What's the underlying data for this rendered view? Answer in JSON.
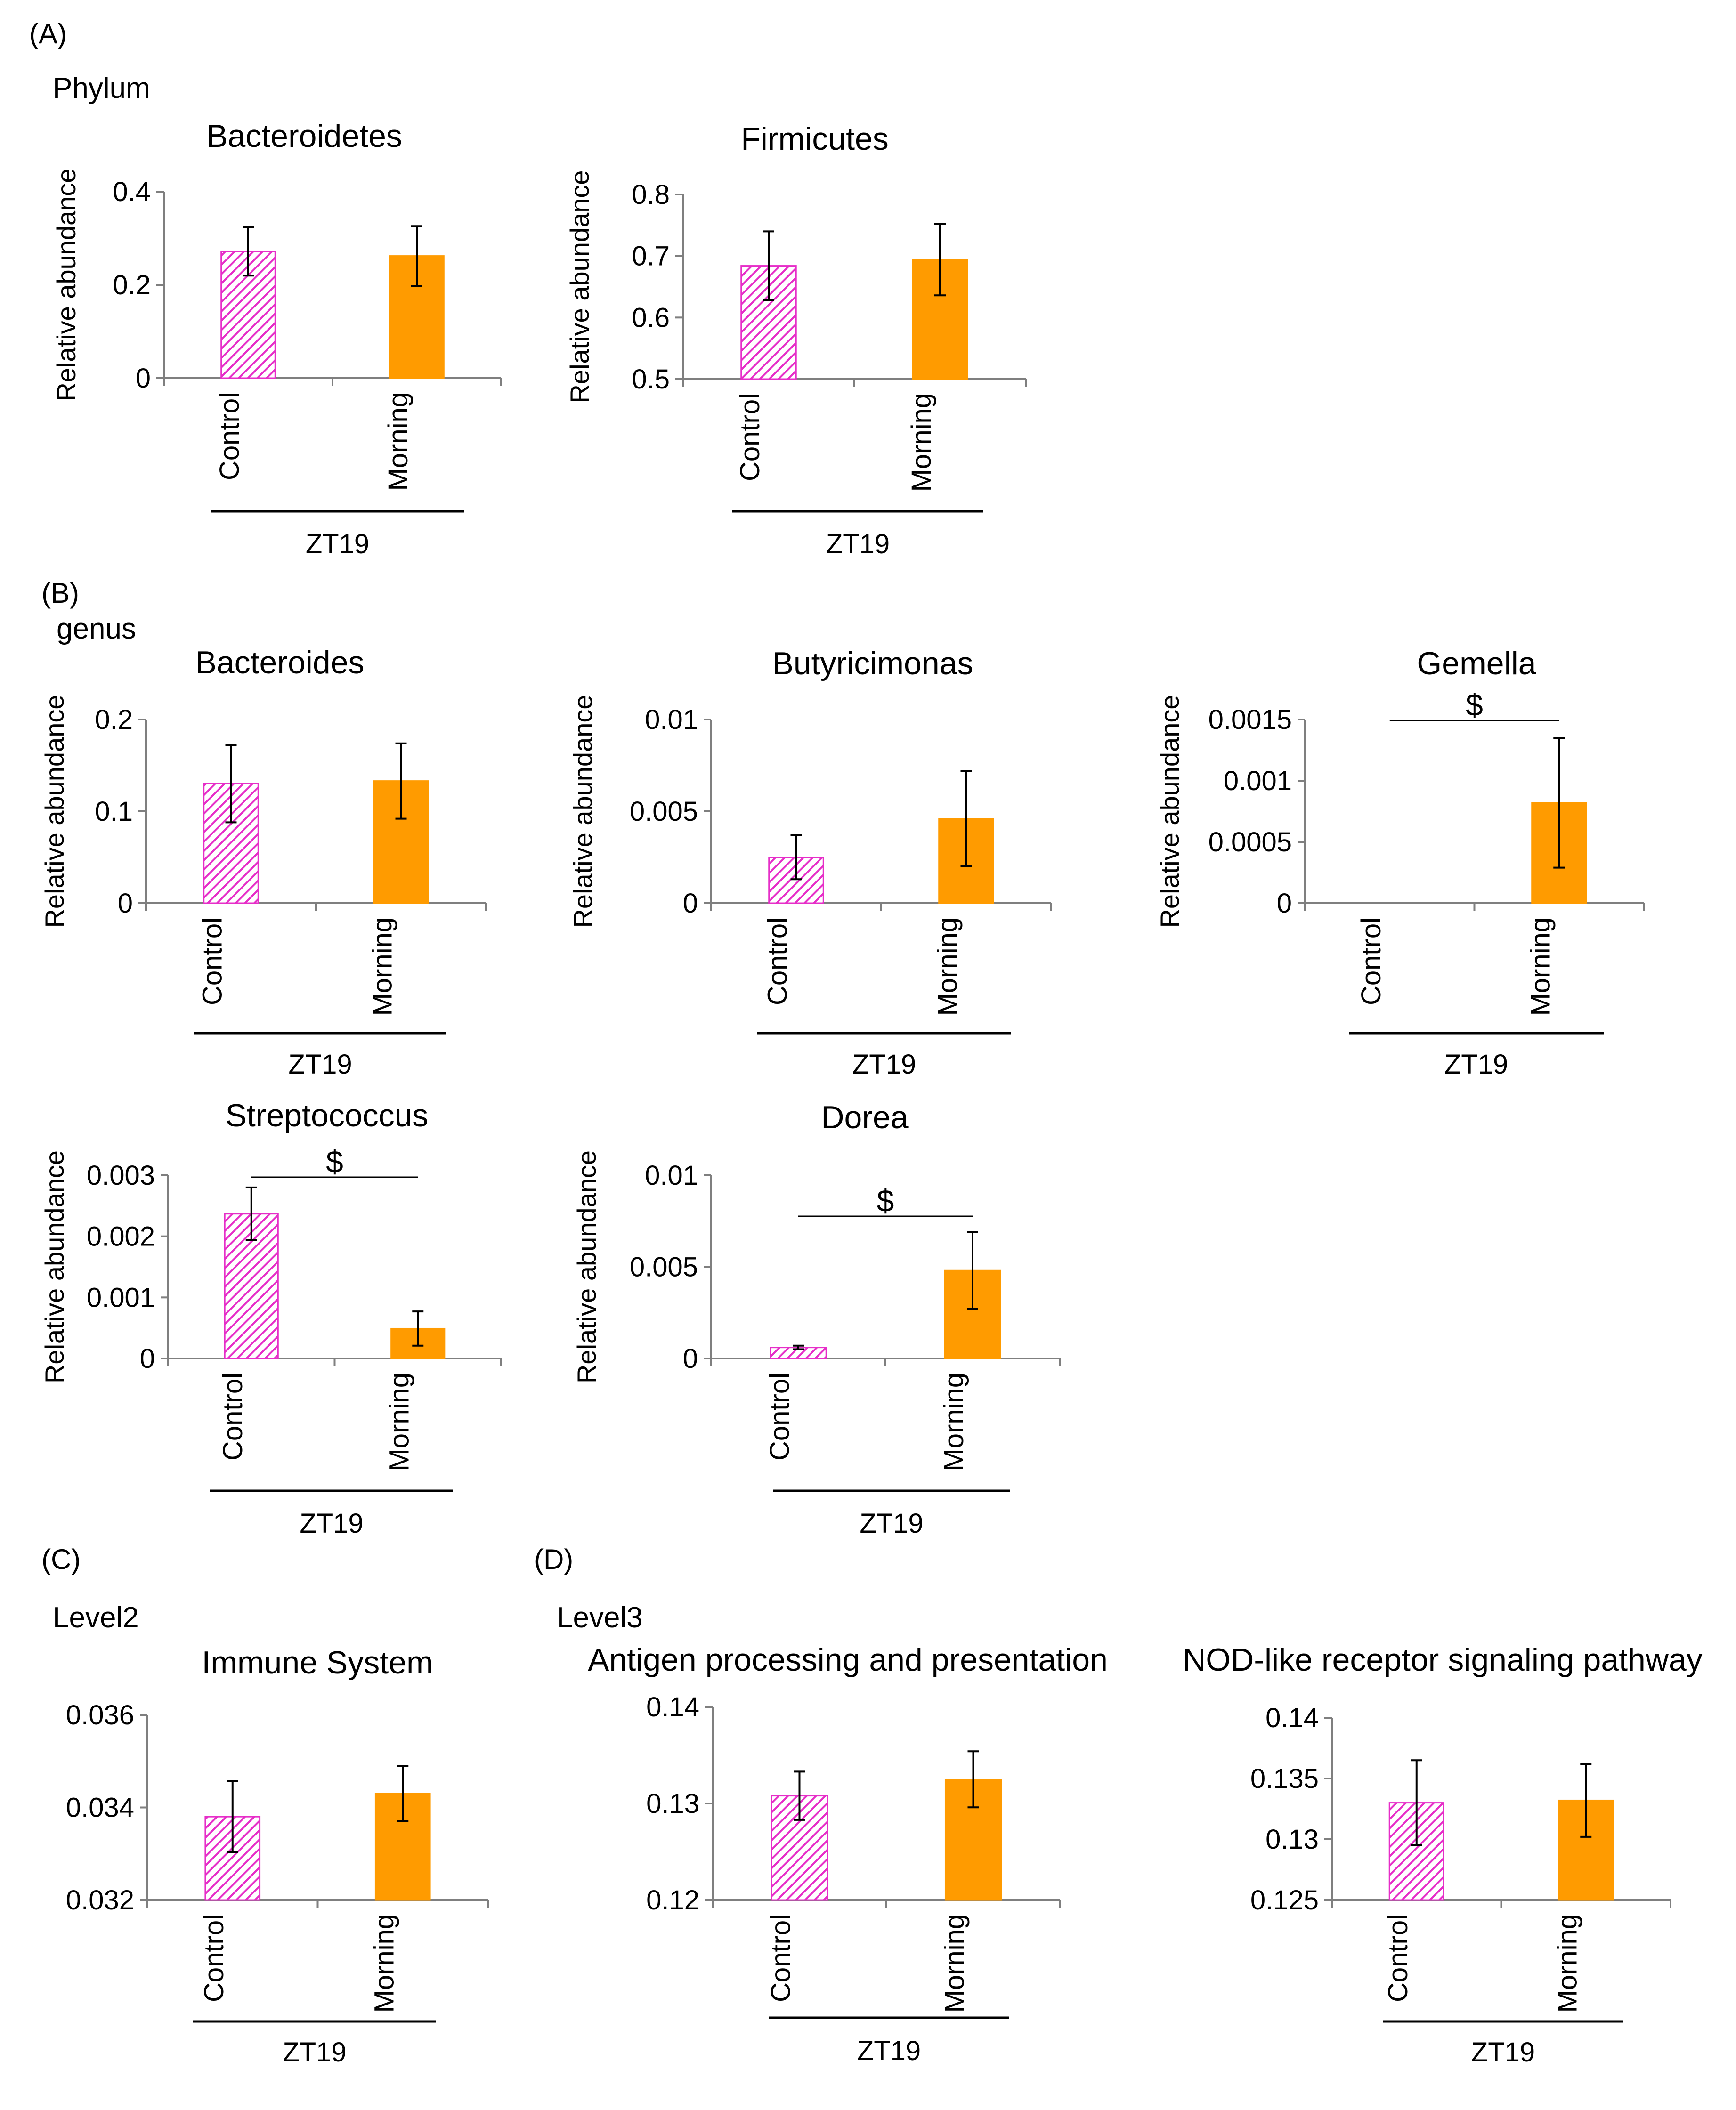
{
  "panels": {
    "A": "(A)",
    "B": "(B)",
    "C": "(C)",
    "D": "(D)"
  },
  "sections": {
    "phylum": "Phylum",
    "genus": "genus",
    "level2": "Level2",
    "level3": "Level3"
  },
  "colors": {
    "control": "#e62ec8",
    "morning": "#ff9b00",
    "axis": "#7f7f7f"
  },
  "chart_data": [
    {
      "type": "bar",
      "title": "Bacteroidetes",
      "ylabel": "Relative abundance",
      "categories": [
        "Control",
        "Morning"
      ],
      "values": [
        0.272,
        0.262
      ],
      "errors": [
        0.052,
        0.064
      ],
      "ylim": [
        0,
        0.4
      ],
      "yticks": [
        "0",
        "0.2",
        "0.4"
      ],
      "group": "ZT19"
    },
    {
      "type": "bar",
      "title": "Firmicutes",
      "ylabel": "Relative abundance",
      "categories": [
        "Control",
        "Morning"
      ],
      "values": [
        0.684,
        0.694
      ],
      "errors": [
        0.056,
        0.058
      ],
      "ylim": [
        0.5,
        0.8
      ],
      "yticks": [
        "0.5",
        "0.6",
        "0.7",
        "0.8"
      ],
      "group": "ZT19"
    },
    {
      "type": "bar",
      "title": "Bacteroides",
      "ylabel": "Relative abundance",
      "categories": [
        "Control",
        "Morning"
      ],
      "values": [
        0.13,
        0.133
      ],
      "errors": [
        0.042,
        0.041
      ],
      "ylim": [
        0,
        0.2
      ],
      "yticks": [
        "0",
        "0.1",
        "0.2"
      ],
      "group": "ZT19"
    },
    {
      "type": "bar",
      "title": "Butyricimonas",
      "ylabel": "Relative abundance",
      "categories": [
        "Control",
        "Morning"
      ],
      "values": [
        0.0025,
        0.0046
      ],
      "errors": [
        0.0012,
        0.0026
      ],
      "ylim": [
        0,
        0.01
      ],
      "yticks": [
        "0",
        "0.005",
        "0.01"
      ],
      "group": "ZT19"
    },
    {
      "type": "bar",
      "title": "Gemella",
      "ylabel": "Relative abundance",
      "categories": [
        "Control",
        "Morning"
      ],
      "values": [
        0,
        0.00082
      ],
      "errors": [
        0,
        0.00053
      ],
      "ylim": [
        0,
        0.0015
      ],
      "yticks": [
        "0",
        "0.0005",
        "0.001",
        "0.0015"
      ],
      "group": "ZT19",
      "significance": "$"
    },
    {
      "type": "bar",
      "title": "Streptococcus",
      "ylabel": "Relative abundance",
      "categories": [
        "Control",
        "Morning"
      ],
      "values": [
        0.00237,
        0.00049
      ],
      "errors": [
        0.00043,
        0.00028
      ],
      "ylim": [
        0,
        0.003
      ],
      "yticks": [
        "0",
        "0.001",
        "0.002",
        "0.003"
      ],
      "group": "ZT19",
      "significance": "$"
    },
    {
      "type": "bar",
      "title": "Dorea",
      "ylabel": "Relative abundance",
      "categories": [
        "Control",
        "Morning"
      ],
      "values": [
        0.0006,
        0.0048
      ],
      "errors": [
        0.0001,
        0.0021
      ],
      "ylim": [
        0,
        0.01
      ],
      "yticks": [
        "0",
        "0.005",
        "0.01"
      ],
      "group": "ZT19",
      "significance": "$"
    },
    {
      "type": "bar",
      "title": "Immune System",
      "ylabel": "",
      "categories": [
        "Control",
        "Morning"
      ],
      "values": [
        0.0338,
        0.0343
      ],
      "errors": [
        0.00077,
        0.0006
      ],
      "ylim": [
        0.032,
        0.036
      ],
      "yticks": [
        "0.032",
        "0.034",
        "0.036"
      ],
      "group": "ZT19"
    },
    {
      "type": "bar",
      "title": "Antigen processing and presentation",
      "ylabel": "",
      "categories": [
        "Control",
        "Morning"
      ],
      "values": [
        0.1308,
        0.1325
      ],
      "errors": [
        0.0025,
        0.0029
      ],
      "ylim": [
        0.12,
        0.14
      ],
      "yticks": [
        "0.12",
        "0.13",
        "0.14"
      ],
      "group": "ZT19"
    },
    {
      "type": "bar",
      "title": "NOD-like receptor signaling pathway",
      "ylabel": "",
      "categories": [
        "Control",
        "Morning"
      ],
      "values": [
        0.133,
        0.1332
      ],
      "errors": [
        0.0035,
        0.003
      ],
      "ylim": [
        0.125,
        0.14
      ],
      "yticks": [
        "0.125",
        "0.13",
        "0.135",
        "0.14"
      ],
      "group": "ZT19"
    }
  ]
}
